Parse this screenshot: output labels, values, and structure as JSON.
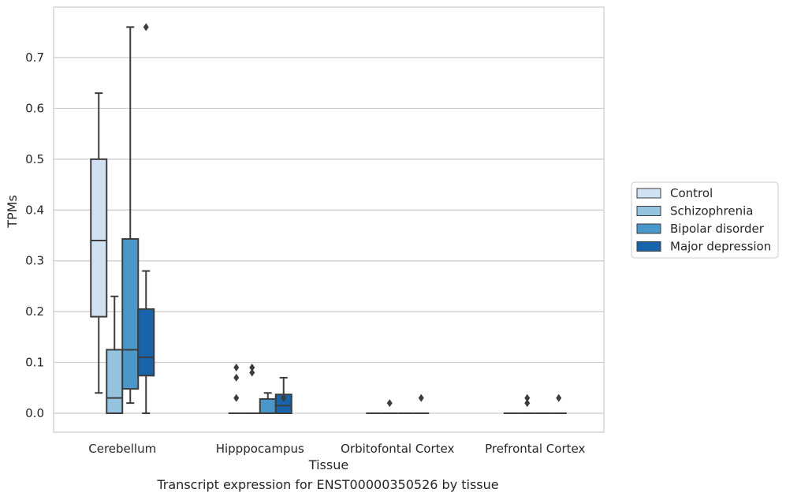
{
  "chart_data": {
    "type": "box",
    "xlabel": "Tissue",
    "ylabel": "TPMs",
    "caption": "Transcript expression for ENST00000350526 by tissue",
    "ylim": [
      -0.038,
      0.8
    ],
    "yticks": [
      0.0,
      0.1,
      0.2,
      0.3,
      0.4,
      0.5,
      0.6,
      0.7
    ],
    "grid": true,
    "legend_position": "right",
    "categories": [
      "Cerebellum",
      "Hipppocampus",
      "Orbitofontal Cortex",
      "Prefrontal Cortex"
    ],
    "series": [
      {
        "name": "Control",
        "color": "#d0e1f2",
        "boxes": [
          {
            "whislo": 0.04,
            "q1": 0.19,
            "med": 0.34,
            "q3": 0.5,
            "whishi": 0.63,
            "fliers": []
          },
          {
            "whislo": 0.0,
            "q1": 0.0,
            "med": 0.0,
            "q3": 0.0,
            "whishi": 0.0,
            "fliers": [
              0.03,
              0.07,
              0.09
            ]
          },
          {
            "whislo": 0.0,
            "q1": 0.0,
            "med": 0.0,
            "q3": 0.0,
            "whishi": 0.0,
            "fliers": []
          },
          {
            "whislo": 0.0,
            "q1": 0.0,
            "med": 0.0,
            "q3": 0.0,
            "whishi": 0.0,
            "fliers": []
          }
        ]
      },
      {
        "name": "Schizophrenia",
        "color": "#94c4df",
        "boxes": [
          {
            "whislo": 0.0,
            "q1": 0.0,
            "med": 0.03,
            "q3": 0.125,
            "whishi": 0.23,
            "fliers": []
          },
          {
            "whislo": 0.0,
            "q1": 0.0,
            "med": 0.0,
            "q3": 0.0,
            "whishi": 0.0,
            "fliers": [
              0.08,
              0.09
            ]
          },
          {
            "whislo": 0.0,
            "q1": 0.0,
            "med": 0.0,
            "q3": 0.0,
            "whishi": 0.0,
            "fliers": [
              0.02
            ]
          },
          {
            "whislo": 0.0,
            "q1": 0.0,
            "med": 0.0,
            "q3": 0.0,
            "whishi": 0.0,
            "fliers": [
              0.02,
              0.03
            ]
          }
        ]
      },
      {
        "name": "Bipolar disorder",
        "color": "#4a98c9",
        "boxes": [
          {
            "whislo": 0.02,
            "q1": 0.048,
            "med": 0.125,
            "q3": 0.343,
            "whishi": 0.76,
            "fliers": []
          },
          {
            "whislo": 0.0,
            "q1": 0.0,
            "med": 0.0,
            "q3": 0.028,
            "whishi": 0.04,
            "fliers": []
          },
          {
            "whislo": 0.0,
            "q1": 0.0,
            "med": 0.0,
            "q3": 0.0,
            "whishi": 0.0,
            "fliers": []
          },
          {
            "whislo": 0.0,
            "q1": 0.0,
            "med": 0.0,
            "q3": 0.0,
            "whishi": 0.0,
            "fliers": []
          }
        ]
      },
      {
        "name": "Major depression",
        "color": "#1764ab",
        "boxes": [
          {
            "whislo": 0.0,
            "q1": 0.074,
            "med": 0.11,
            "q3": 0.205,
            "whishi": 0.28,
            "fliers": [
              0.76
            ]
          },
          {
            "whislo": 0.0,
            "q1": 0.0,
            "med": 0.015,
            "q3": 0.037,
            "whishi": 0.07,
            "fliers": [
              0.03
            ]
          },
          {
            "whislo": 0.0,
            "q1": 0.0,
            "med": 0.0,
            "q3": 0.0,
            "whishi": 0.0,
            "fliers": [
              0.03
            ]
          },
          {
            "whislo": 0.0,
            "q1": 0.0,
            "med": 0.0,
            "q3": 0.0,
            "whishi": 0.0,
            "fliers": [
              0.03
            ]
          }
        ]
      }
    ]
  }
}
